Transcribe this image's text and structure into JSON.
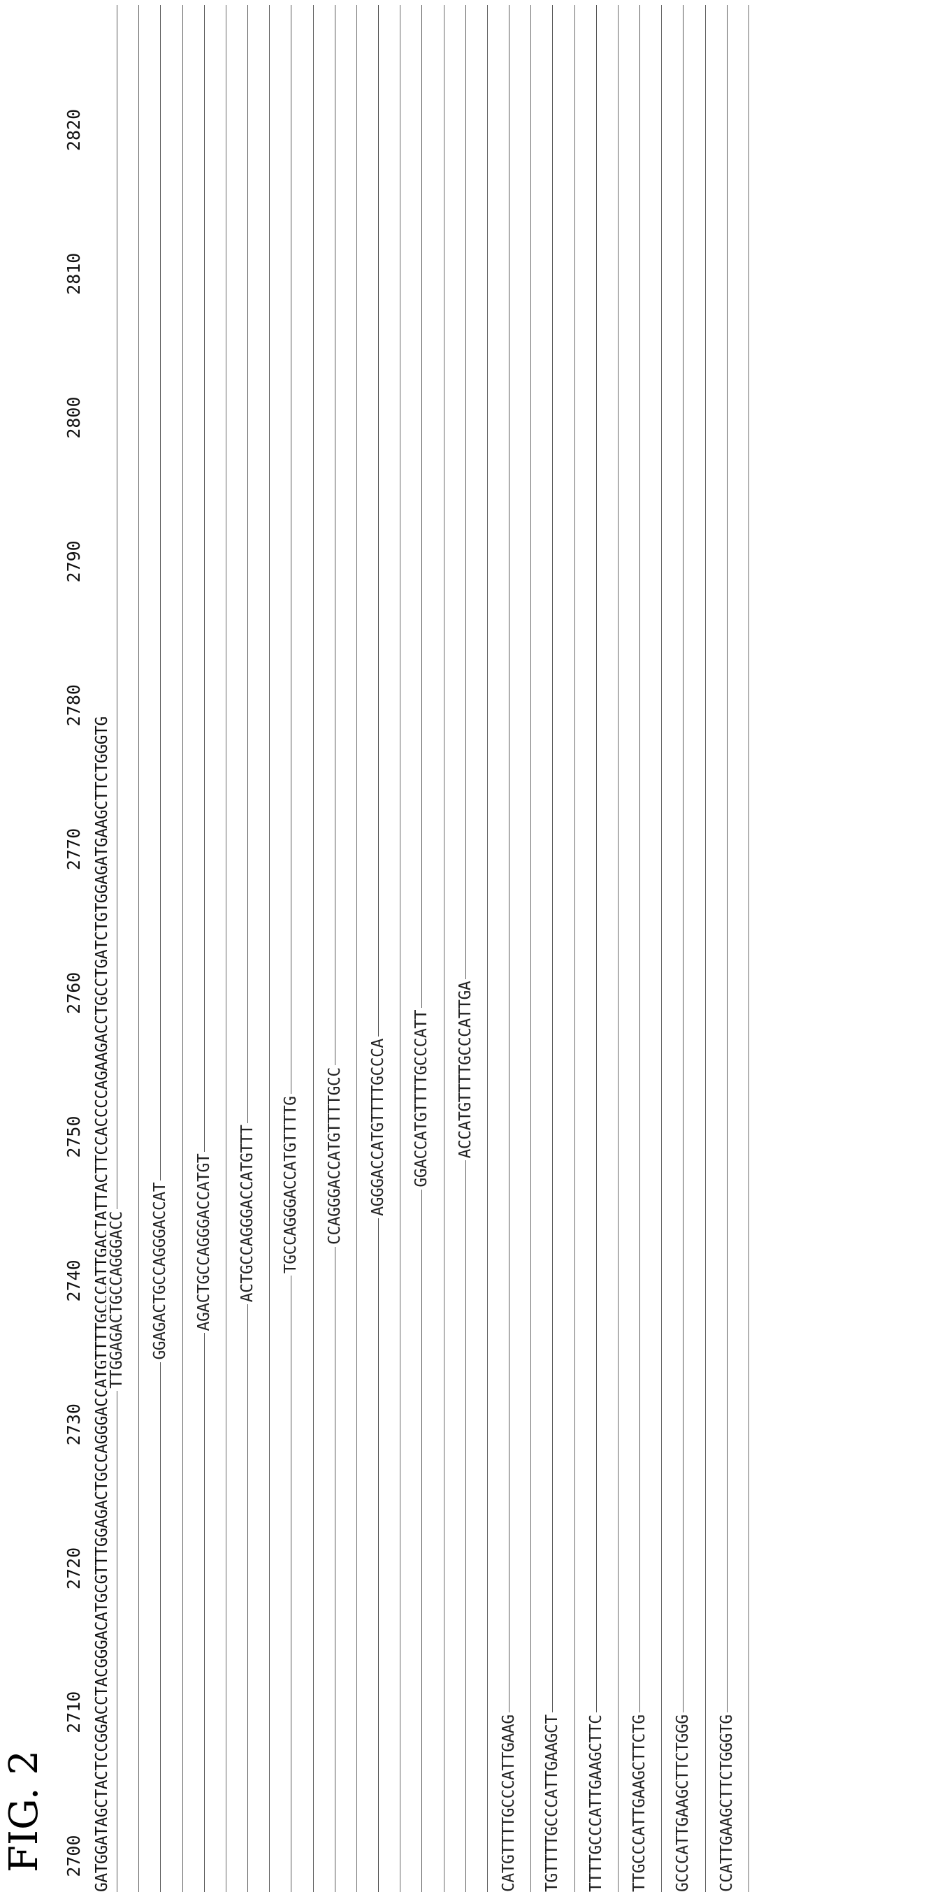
{
  "figure": {
    "title": "FIG. 2"
  },
  "ruler": [
    "2700",
    "2710",
    "2720",
    "2730",
    "2740",
    "2750",
    "2760",
    "2770",
    "2780",
    "2790",
    "2800",
    "2810",
    "2820"
  ],
  "reference_sequence": "GATGGATAGCTACTCCGGACCTACGGGACATGCGTTTGGAGACTGCCAGGGACCATGTTTTGCCCATTGACTATTACTTCCACCCCAGAAGACCTGCCTGATCTGTGGAGATGAAGCTTCTGGGTG",
  "probes": [
    "TTGGAGACTGCCAGGGACC",
    "GGAGACTGCCAGGGACCAT",
    "AGACTGCCAGGGACCATGT",
    "ACTGCCAGGGACCATGTTT",
    "TGCCAGGGACCATGTTTTG",
    "CCAGGGACCATGTTTTGCC",
    "AGGGACCATGTTTTGCCCA",
    "GGACCATGTTTTGCCCATT",
    "ACCATGTTTTGCCCATTGA",
    "CATGTTTTGCCCATTGAAG",
    "TGTTTTGCCCATTGAAGCT",
    "TTTTGCCCATTGAAGCTTC",
    "TTGCCCATTGAAGCTTCTG",
    "GCCCATTGAAGCTTCTGGG",
    "CCATTGAAGCTTCTGGGTG"
  ]
}
